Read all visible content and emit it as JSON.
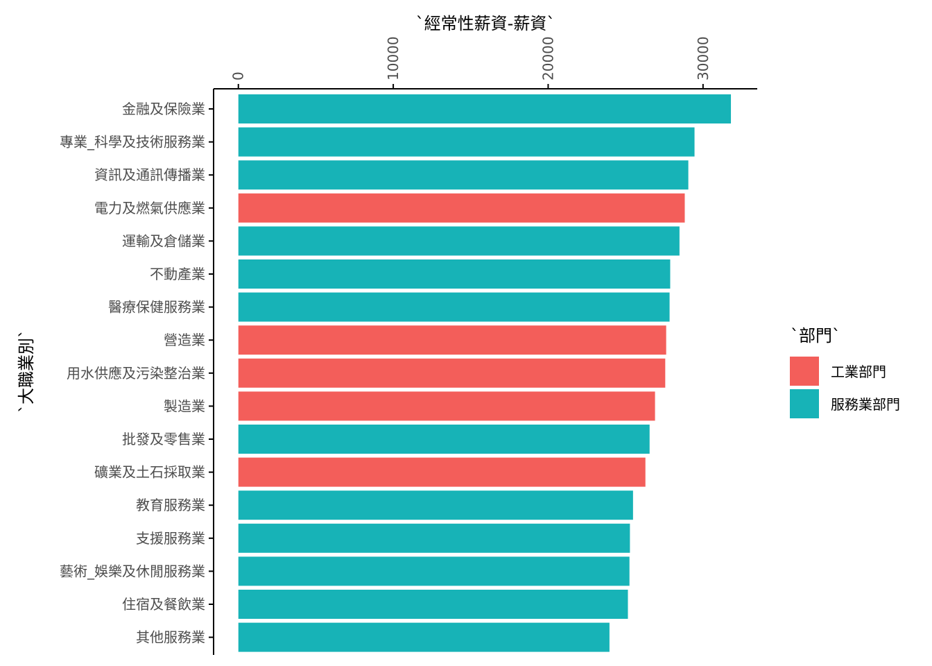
{
  "colors": {
    "工業部門": "#F35E5A",
    "服務業部門": "#17B3B7",
    "axis": "#000000",
    "text": "#4d4d4d"
  },
  "chart_data": {
    "type": "bar",
    "orientation": "horizontal",
    "x_axis_position": "top",
    "xlabel": "`經常性薪資-薪資`",
    "ylabel": "`大職業別`",
    "xlim": [
      -1600,
      33500
    ],
    "xticks": [
      0,
      10000,
      20000,
      30000
    ],
    "xtick_labels": [
      "0",
      "10000",
      "20000",
      "30000"
    ],
    "grid": false,
    "legend": {
      "title": "`部門`",
      "position": "right",
      "entries": [
        "工業部門",
        "服務業部門"
      ]
    },
    "categories": [
      "金融及保險業",
      "專業_科學及技術服務業",
      "資訊及通訊傳播業",
      "電力及燃氣供應業",
      "運輸及倉儲業",
      "不動產業",
      "醫療保健服務業",
      "營造業",
      "用水供應及污染整治業",
      "製造業",
      "批發及零售業",
      "礦業及土石採取業",
      "教育服務業",
      "支援服務業",
      "藝術_娛樂及休閒服務業",
      "住宿及餐飲業",
      "其他服務業"
    ],
    "values": [
      31800,
      29450,
      29050,
      28820,
      28480,
      27880,
      27840,
      27620,
      27560,
      26900,
      26550,
      26280,
      25480,
      25280,
      25250,
      25150,
      23960
    ],
    "groups": [
      "服務業部門",
      "服務業部門",
      "服務業部門",
      "工業部門",
      "服務業部門",
      "服務業部門",
      "服務業部門",
      "工業部門",
      "工業部門",
      "工業部門",
      "服務業部門",
      "工業部門",
      "服務業部門",
      "服務業部門",
      "服務業部門",
      "服務業部門",
      "服務業部門"
    ]
  }
}
